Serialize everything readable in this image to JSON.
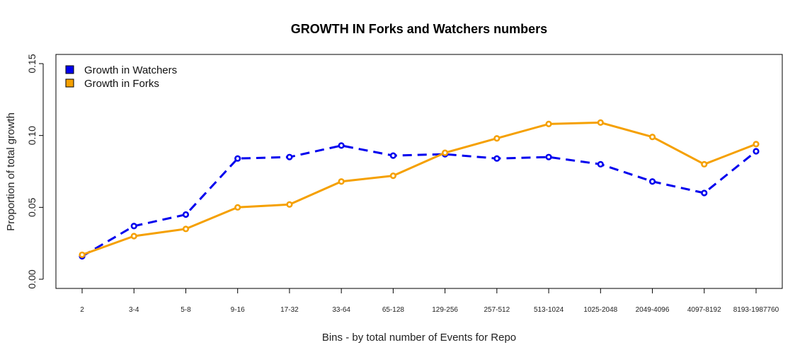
{
  "chart_data": {
    "type": "line",
    "title": "GROWTH IN Forks and Watchers numbers",
    "xlabel": "Bins - by total number of Events for Repo",
    "ylabel": "Proportion of total growth",
    "categories": [
      "2",
      "3-4",
      "5-8",
      "9-16",
      "17-32",
      "33-64",
      "65-128",
      "129-256",
      "257-512",
      "513-1024",
      "1025-2048",
      "2049-4096",
      "4097-8192",
      "8193-1987760"
    ],
    "ylim": [
      0,
      0.15
    ],
    "yticks": [
      "0.00",
      "0.05",
      "0.10",
      "0.15"
    ],
    "legend_position": "top-left",
    "grid": false,
    "series": [
      {
        "name": "Growth in Watchers",
        "color": "#0000ee",
        "line_style": "dashed",
        "values": [
          0.016,
          0.037,
          0.045,
          0.084,
          0.085,
          0.093,
          0.086,
          0.087,
          0.084,
          0.085,
          0.08,
          0.068,
          0.06,
          0.089
        ]
      },
      {
        "name": "Growth in Forks",
        "color": "#f5a000",
        "line_style": "solid",
        "values": [
          0.017,
          0.03,
          0.035,
          0.05,
          0.052,
          0.068,
          0.072,
          0.088,
          0.098,
          0.108,
          0.109,
          0.099,
          0.08,
          0.094
        ]
      }
    ]
  }
}
